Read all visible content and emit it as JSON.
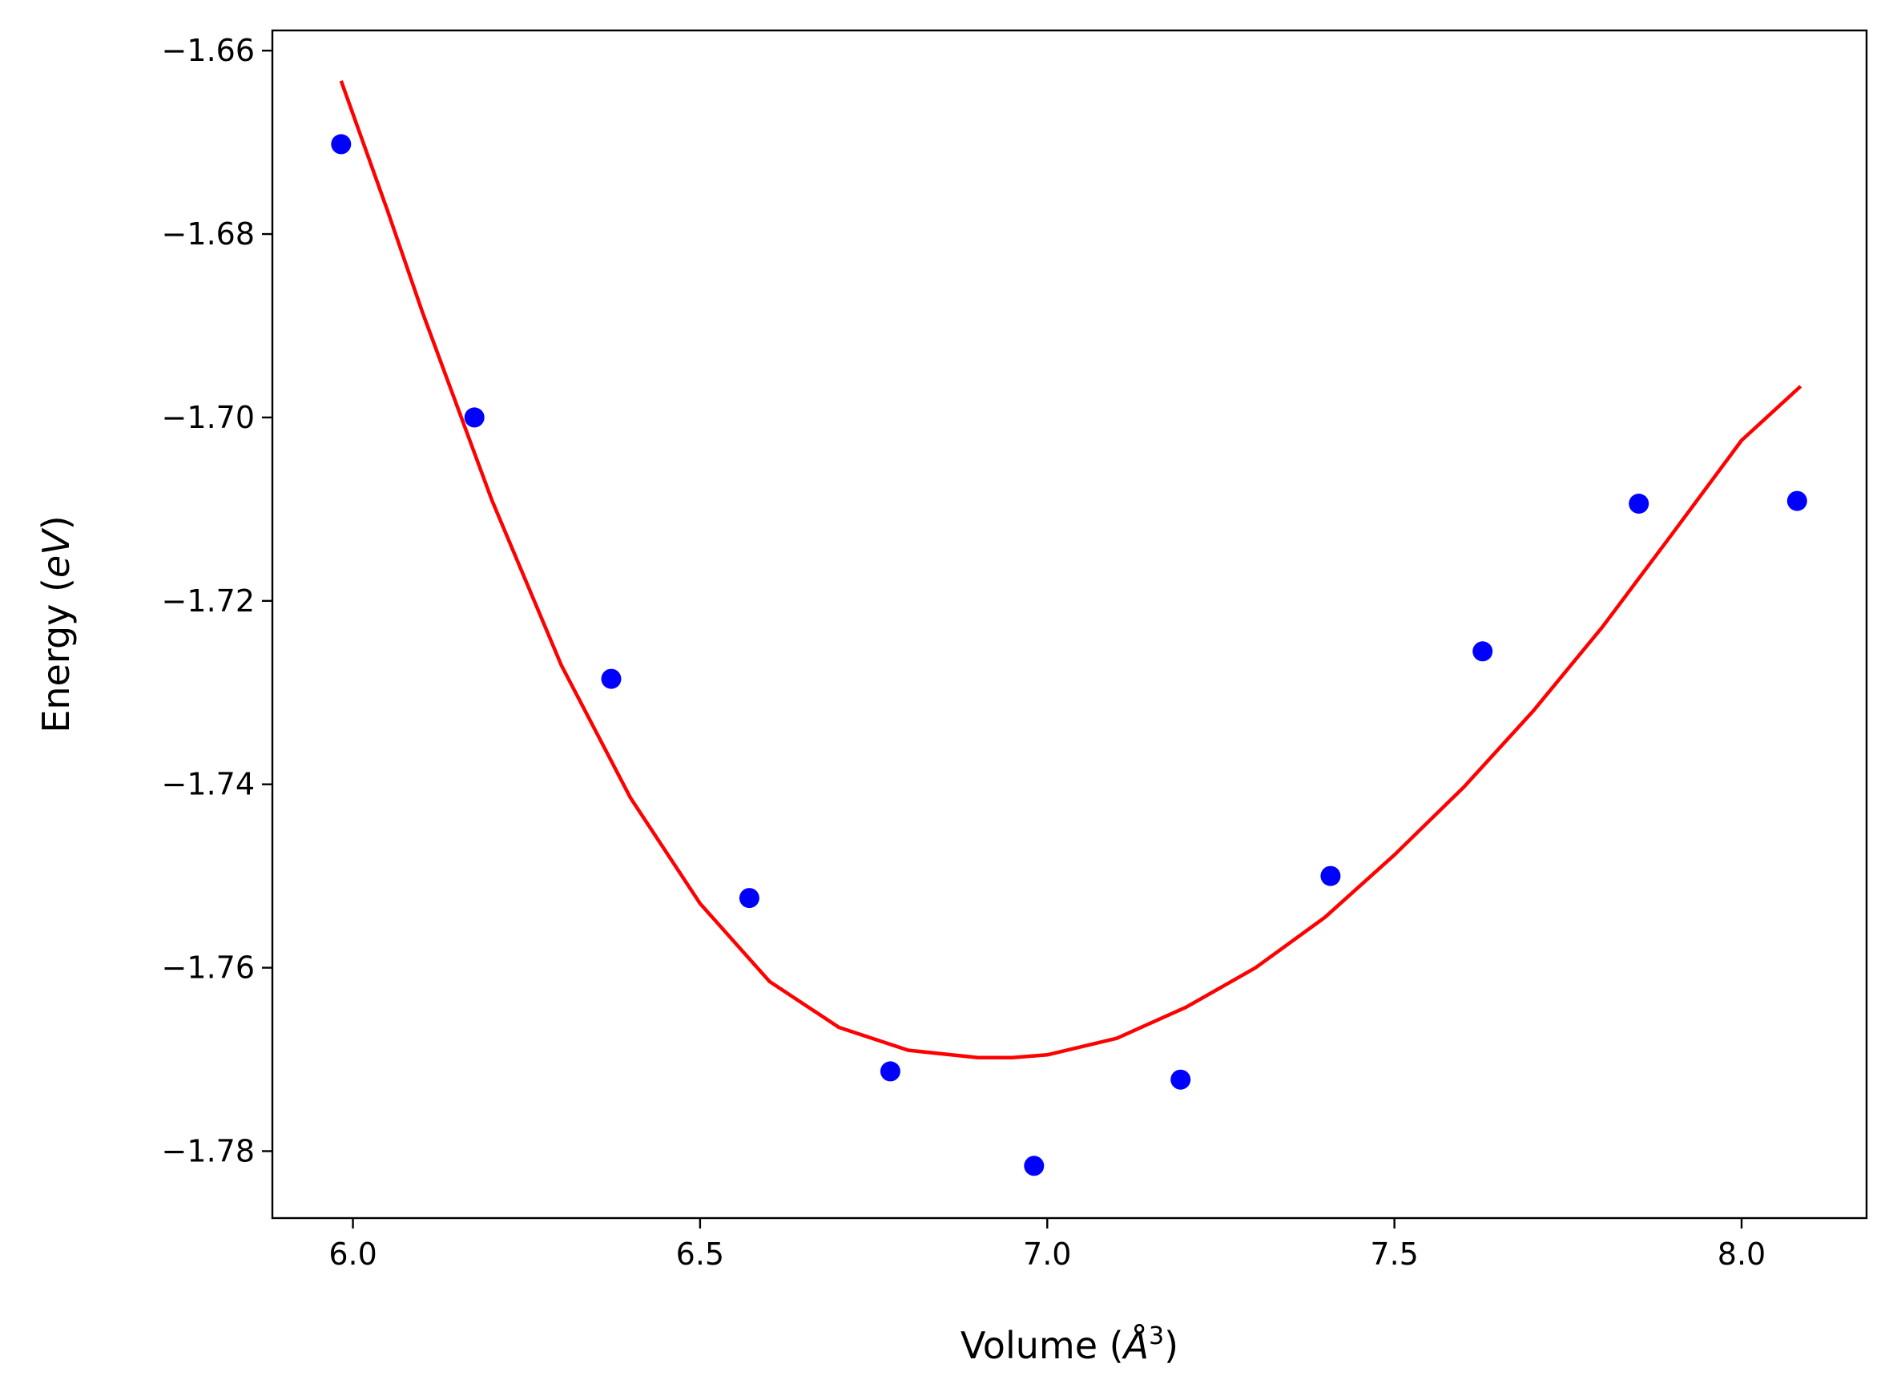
{
  "chart_data": {
    "type": "scatter",
    "xlabel": {
      "prefix": "Volume (",
      "symbol": "Å",
      "sup": "3",
      "suffix": ")"
    },
    "ylabel": {
      "prefix": "Energy (",
      "symbol": "eV",
      "suffix": ")"
    },
    "xlim": [
      5.884,
      8.18
    ],
    "ylim": [
      -1.7873,
      -1.6578
    ],
    "x_ticks": [
      {
        "value": 6.0,
        "label": "6.0"
      },
      {
        "value": 6.5,
        "label": "6.5"
      },
      {
        "value": 7.0,
        "label": "7.0"
      },
      {
        "value": 7.5,
        "label": "7.5"
      },
      {
        "value": 8.0,
        "label": "8.0"
      }
    ],
    "y_ticks": [
      {
        "value": -1.66,
        "label": "−1.66"
      },
      {
        "value": -1.68,
        "label": "−1.68"
      },
      {
        "value": -1.7,
        "label": "−1.70"
      },
      {
        "value": -1.72,
        "label": "−1.72"
      },
      {
        "value": -1.74,
        "label": "−1.74"
      },
      {
        "value": -1.76,
        "label": "−1.76"
      },
      {
        "value": -1.78,
        "label": "−1.78"
      }
    ],
    "grid": false,
    "series": [
      {
        "type": "scatter",
        "color": "#0000ff",
        "x": [
          5.983,
          6.175,
          6.372,
          6.571,
          6.774,
          6.981,
          7.192,
          7.408,
          7.627,
          7.852,
          8.08
        ],
        "y": [
          -1.6702,
          -1.7,
          -1.7285,
          -1.7524,
          -1.7713,
          -1.7816,
          -1.7722,
          -1.75,
          -1.7255,
          -1.7094,
          -1.7091
        ]
      },
      {
        "type": "line",
        "color": "#ff0000",
        "x": [
          5.983,
          6.05,
          6.1,
          6.2,
          6.3,
          6.4,
          6.5,
          6.6,
          6.7,
          6.8,
          6.9,
          6.95,
          7.0,
          7.1,
          7.2,
          7.3,
          7.4,
          7.5,
          7.6,
          7.7,
          7.8,
          7.9,
          8.0,
          8.085
        ],
        "y": [
          -1.6633,
          -1.6775,
          -1.6885,
          -1.709,
          -1.727,
          -1.7415,
          -1.753,
          -1.7615,
          -1.7665,
          -1.769,
          -1.7698,
          -1.7698,
          -1.7695,
          -1.7677,
          -1.7643,
          -1.76,
          -1.7545,
          -1.7477,
          -1.7403,
          -1.732,
          -1.7228,
          -1.7127,
          -1.7025,
          -1.6966
        ]
      }
    ]
  }
}
